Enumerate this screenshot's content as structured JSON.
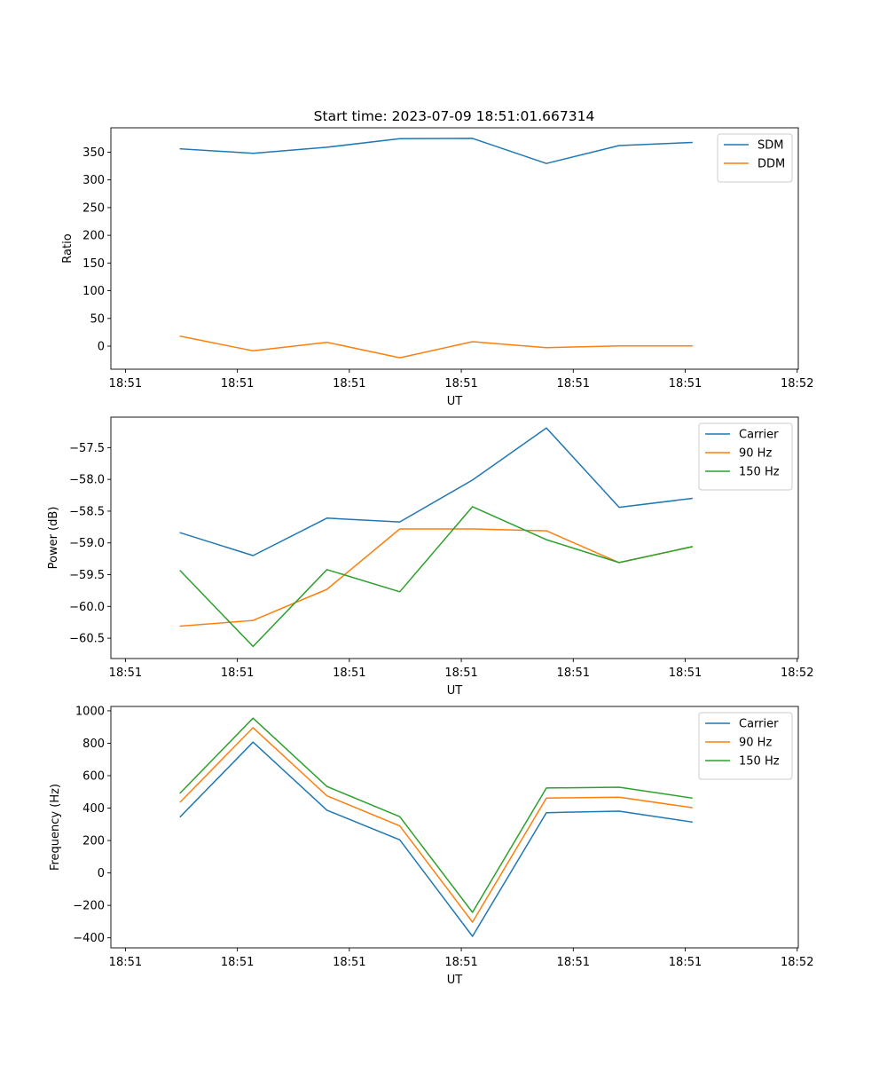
{
  "figure": {
    "title": "Start time: 2023-07-09 18:51:01.667314"
  },
  "chart_data": [
    {
      "type": "line",
      "title": "Start time: 2023-07-09 18:51:01.667314",
      "xlabel": "UT",
      "ylabel": "Ratio",
      "x_unit": "seconds after 18:51:00",
      "x": [
        4.9,
        11.4,
        18.0,
        24.5,
        31.0,
        37.6,
        44.1,
        50.6
      ],
      "xlim": [
        -1.3,
        60.1
      ],
      "x_ticks": [
        0,
        10,
        20,
        30,
        40,
        50,
        60
      ],
      "x_tick_labels": [
        "18:51",
        "18:51",
        "18:51",
        "18:51",
        "18:51",
        "18:51",
        "18:52"
      ],
      "ylim": [
        -41.6,
        394
      ],
      "y_ticks": [
        0,
        50,
        100,
        150,
        200,
        250,
        300,
        350
      ],
      "y_tick_labels": [
        "0",
        "50",
        "100",
        "150",
        "200",
        "250",
        "300",
        "350"
      ],
      "grid": false,
      "legend_position": "top-right",
      "series": [
        {
          "name": "SDM",
          "color": "#1f77b4",
          "values": [
            356,
            348,
            359,
            374.5,
            375,
            329.6,
            362,
            367.5
          ]
        },
        {
          "name": "DDM",
          "color": "#ff7f0e",
          "values": [
            18,
            -8.5,
            7,
            -21,
            8,
            -2.7,
            0.5,
            0.3
          ]
        }
      ]
    },
    {
      "type": "line",
      "title": "",
      "xlabel": "UT",
      "ylabel": "Power (dB)",
      "x_unit": "seconds after 18:51:00",
      "x": [
        4.9,
        11.4,
        18.0,
        24.5,
        31.0,
        37.6,
        44.1,
        50.6
      ],
      "xlim": [
        -1.3,
        60.1
      ],
      "x_ticks": [
        0,
        10,
        20,
        30,
        40,
        50,
        60
      ],
      "x_tick_labels": [
        "18:51",
        "18:51",
        "18:51",
        "18:51",
        "18:51",
        "18:51",
        "18:52"
      ],
      "ylim": [
        -60.82,
        -57.02
      ],
      "y_ticks": [
        -60.5,
        -60.0,
        -59.5,
        -59.0,
        -58.5,
        -58.0,
        -57.5
      ],
      "y_tick_labels": [
        "−60.5",
        "−60.0",
        "−59.5",
        "−59.0",
        "−58.5",
        "−58.0",
        "−57.5"
      ],
      "grid": false,
      "legend_position": "top-right",
      "series": [
        {
          "name": "Carrier",
          "color": "#1f77b4",
          "values": [
            -58.84,
            -59.2,
            -58.61,
            -58.67,
            -58.01,
            -57.19,
            -58.44,
            -58.3
          ]
        },
        {
          "name": "90 Hz",
          "color": "#ff7f0e",
          "values": [
            -60.31,
            -60.22,
            -59.73,
            -58.78,
            -58.78,
            -58.81,
            -59.31,
            -59.06
          ]
        },
        {
          "name": "150 Hz",
          "color": "#2ca02c",
          "values": [
            -59.44,
            -60.63,
            -59.42,
            -59.77,
            -58.43,
            -58.95,
            -59.31,
            -59.06
          ]
        }
      ]
    },
    {
      "type": "line",
      "title": "",
      "xlabel": "UT",
      "ylabel": "Frequency (Hz)",
      "x_unit": "seconds after 18:51:00",
      "x": [
        4.9,
        11.4,
        18.0,
        24.5,
        31.0,
        37.6,
        44.1,
        50.6
      ],
      "xlim": [
        -1.3,
        60.1
      ],
      "x_ticks": [
        0,
        10,
        20,
        30,
        40,
        50,
        60
      ],
      "x_tick_labels": [
        "18:51",
        "18:51",
        "18:51",
        "18:51",
        "18:51",
        "18:51",
        "18:52"
      ],
      "ylim": [
        -462,
        1027
      ],
      "y_ticks": [
        -400,
        -200,
        0,
        200,
        400,
        600,
        800,
        1000
      ],
      "y_tick_labels": [
        "−400",
        "−200",
        "0",
        "200",
        "400",
        "600",
        "800",
        "1000"
      ],
      "grid": false,
      "legend_position": "top-right",
      "series": [
        {
          "name": "Carrier",
          "color": "#1f77b4",
          "values": [
            347,
            807,
            387,
            204,
            -391,
            372,
            381,
            314
          ]
        },
        {
          "name": "90 Hz",
          "color": "#ff7f0e",
          "values": [
            438,
            896,
            476,
            290,
            -303,
            462,
            467,
            403
          ]
        },
        {
          "name": "150 Hz",
          "color": "#2ca02c",
          "values": [
            494,
            955,
            533,
            347,
            -243,
            524,
            529,
            462
          ]
        }
      ]
    }
  ]
}
